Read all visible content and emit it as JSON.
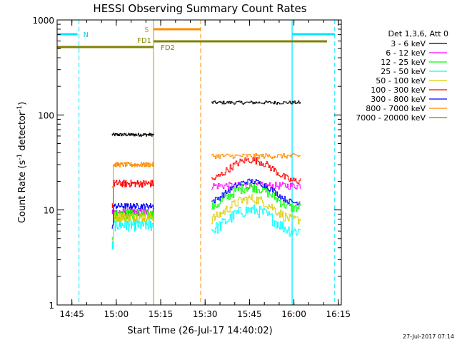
{
  "chart_data": {
    "type": "line",
    "title": "HESSI Observing Summary Count Rates",
    "xlabel": "Start Time (26-Jul-17 14:40:02)",
    "ylabel_main": "Count Rate (s",
    "ylabel_sup1": "-1",
    "ylabel_mid": " detector",
    "ylabel_sup2": "-1",
    "ylabel_end": ")",
    "yscale": "log",
    "ylim": [
      1,
      1000
    ],
    "xlim_minutes": [
      14.667,
      16.267
    ],
    "xticks": [
      {
        "label": "14:45",
        "t": 14.75
      },
      {
        "label": "15:00",
        "t": 15.0
      },
      {
        "label": "15:15",
        "t": 15.25
      },
      {
        "label": "15:30",
        "t": 15.5
      },
      {
        "label": "15:45",
        "t": 15.75
      },
      {
        "label": "16:00",
        "t": 16.0
      },
      {
        "label": "16:15",
        "t": 16.25
      }
    ],
    "yticks": [
      {
        "label": "1",
        "v": 1
      },
      {
        "label": "10",
        "v": 10
      },
      {
        "label": "100",
        "v": 100
      },
      {
        "label": "1000",
        "v": 1000
      }
    ],
    "legend_title": "Det 1,3,6, Att 0",
    "series": [
      {
        "name": "3 - 6 keV",
        "color": "#000000",
        "seg1": 62,
        "seg2": 135
      },
      {
        "name": "6 - 12 keV",
        "color": "#ff00ff",
        "seg1": 9.5,
        "seg2": 18
      },
      {
        "name": "12 - 25 keV",
        "color": "#00ff00",
        "seg1": 9,
        "seg2": 14
      },
      {
        "name": "25 - 50 keV",
        "color": "#00ffff",
        "seg1": 7,
        "seg2": 8
      },
      {
        "name": "50 - 100 keV",
        "color": "#ddcc00",
        "seg1": 8.5,
        "seg2": 10.5
      },
      {
        "name": "100 - 300 keV",
        "color": "#ff0000",
        "seg1": 19,
        "seg2": 27
      },
      {
        "name": "300 - 800 keV",
        "color": "#0000ff",
        "seg1": 11,
        "seg2": 16
      },
      {
        "name": "800 - 7000 keV",
        "color": "#ff8c00",
        "seg1": 30,
        "seg2": 37
      },
      {
        "name": "7000 - 20000 keV",
        "color": "#808000",
        "seg1": null,
        "seg2": null
      }
    ],
    "annotations": {
      "N": "N",
      "S": "S",
      "FD1": "FD1",
      "FD2": "FD2"
    }
  },
  "footer": {
    "timestamp": "27-Jul-2017 07:14"
  }
}
